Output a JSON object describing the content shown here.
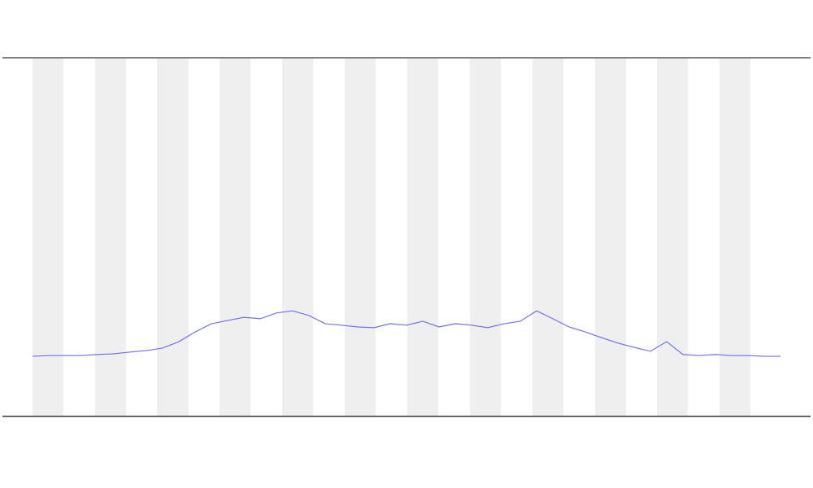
{
  "chart_data": {
    "type": "line",
    "x": [
      0,
      1,
      2,
      3,
      4,
      5,
      6,
      7,
      8,
      9,
      10,
      11,
      12,
      13,
      14,
      15,
      16,
      17,
      18,
      19,
      20,
      21,
      22,
      23,
      24,
      25,
      26,
      27,
      28,
      29,
      30,
      31,
      32,
      33,
      34,
      35,
      36,
      37,
      38,
      39,
      40,
      41,
      42,
      43,
      44,
      45,
      46
    ],
    "series": [
      {
        "color": "#7070ee",
        "values": [
          16.8,
          17.0,
          17.0,
          17.0,
          17.3,
          17.5,
          18.0,
          18.4,
          19.1,
          20.9,
          23.6,
          25.9,
          26.8,
          27.7,
          27.3,
          28.9,
          29.5,
          28.2,
          25.9,
          25.5,
          25.0,
          24.8,
          25.9,
          25.5,
          26.6,
          25.0,
          25.9,
          25.5,
          24.8,
          25.9,
          26.6,
          29.5,
          27.3,
          25.0,
          23.6,
          22.0,
          20.5,
          19.3,
          18.2,
          20.9,
          17.3,
          17.0,
          17.3,
          17.0,
          17.0,
          16.8,
          16.8
        ]
      }
    ],
    "xlim": [
      -1.85,
      47.85
    ],
    "ylim": [
      0,
      100
    ]
  }
}
